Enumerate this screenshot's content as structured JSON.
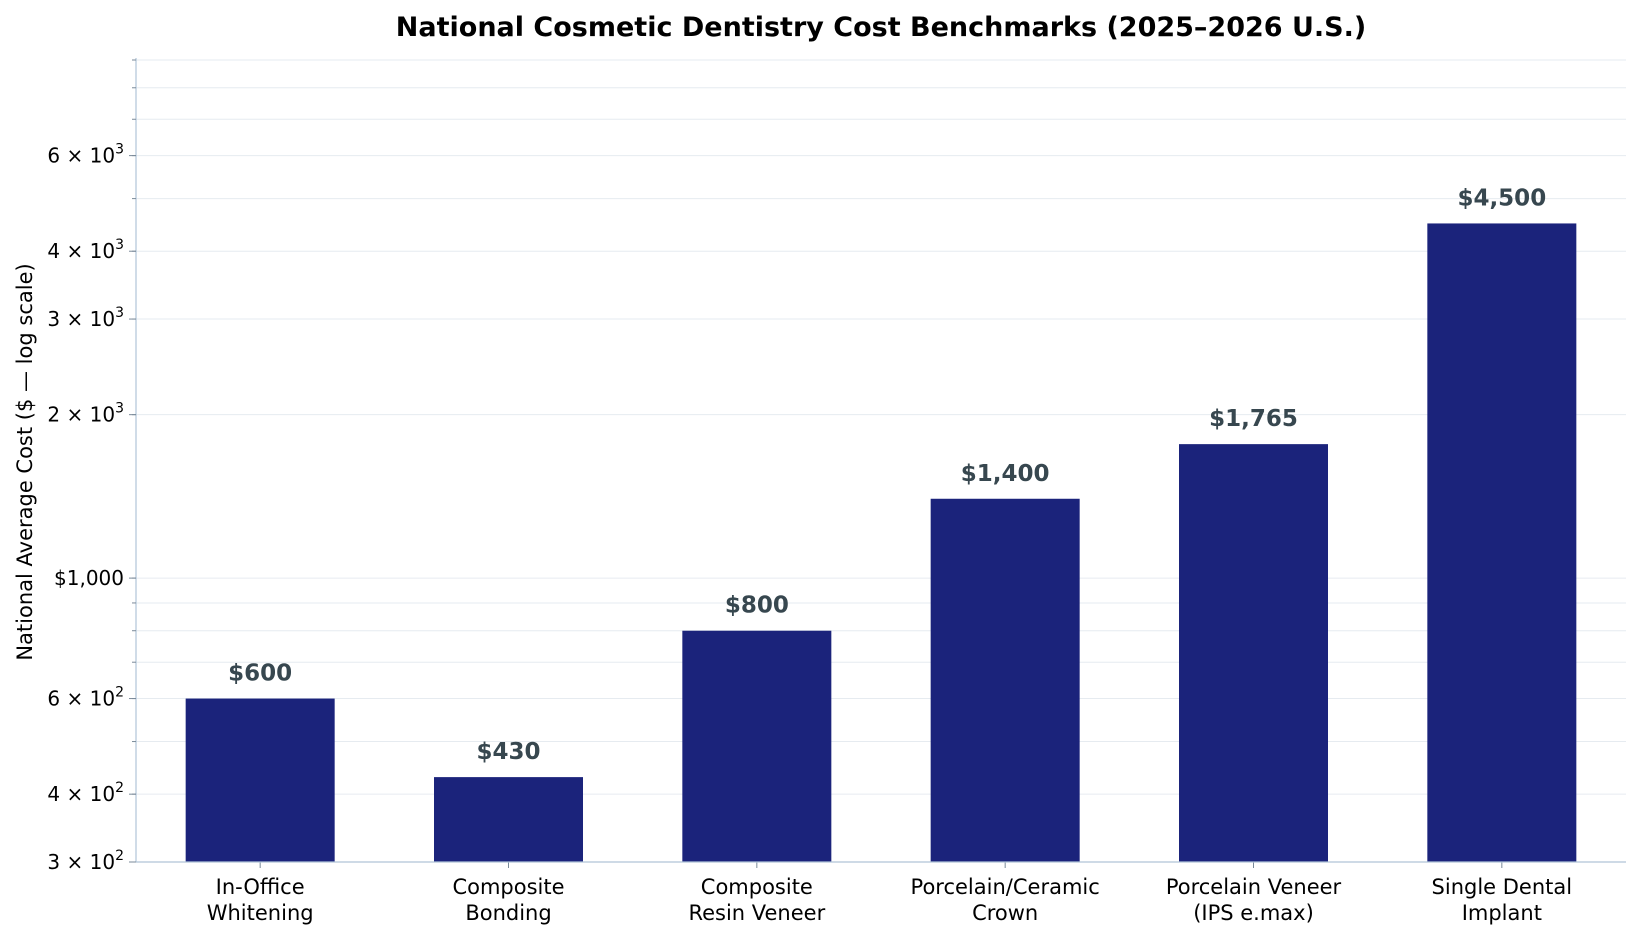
{
  "chart_data": {
    "type": "bar",
    "title": "National Cosmetic Dentistry Cost Benchmarks (2025–2026 U.S.)",
    "ylabel": "National Average Cost ($ — log scale)",
    "xlabel": "",
    "y_scale": "log",
    "ylim": [
      300,
      9000
    ],
    "categories": [
      [
        "In-Office",
        "Whitening"
      ],
      [
        "Composite",
        "Bonding"
      ],
      [
        "Composite",
        "Resin Veneer"
      ],
      [
        "Porcelain/Ceramic",
        "Crown"
      ],
      [
        "Porcelain Veneer",
        "(IPS e.max)"
      ],
      [
        "Single Dental",
        "Implant"
      ]
    ],
    "values": [
      600,
      430,
      800,
      1400,
      1765,
      4500
    ],
    "data_labels": [
      "$600",
      "$430",
      "$800",
      "$1,400",
      "$1,765",
      "$4,500"
    ],
    "y_tick_labels": [
      {
        "value": 300,
        "mantissa": "3",
        "base": "10",
        "exp": "2"
      },
      {
        "value": 400,
        "mantissa": "4",
        "base": "10",
        "exp": "2"
      },
      {
        "value": 600,
        "mantissa": "6",
        "base": "10",
        "exp": "2"
      },
      {
        "value": 1000,
        "text": "$1,000"
      },
      {
        "value": 2000,
        "mantissa": "2",
        "base": "10",
        "exp": "3"
      },
      {
        "value": 3000,
        "mantissa": "3",
        "base": "10",
        "exp": "3"
      },
      {
        "value": 4000,
        "mantissa": "4",
        "base": "10",
        "exp": "3"
      },
      {
        "value": 6000,
        "mantissa": "6",
        "base": "10",
        "exp": "3"
      }
    ],
    "gridlines": [
      300,
      400,
      500,
      600,
      700,
      800,
      900,
      1000,
      2000,
      3000,
      4000,
      5000,
      6000,
      7000,
      8000,
      9000
    ],
    "grid": true,
    "legend": "none",
    "colors": {
      "bar": "#1b237b",
      "data_label": "#37474f",
      "grid": "#e6ebf0",
      "axis": "#b0c4d8"
    }
  }
}
